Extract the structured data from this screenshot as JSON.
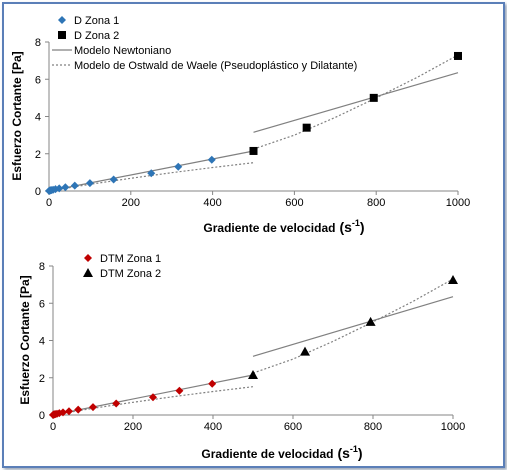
{
  "colors": {
    "zona1_top": "#2e75b6",
    "zona1_bottom": "#c00000",
    "zona2": "#000000",
    "model_line": "#808080",
    "frame_border": "#5b7fb8"
  },
  "chart_data": [
    {
      "type": "scatter",
      "title": "",
      "xlabel_main": "Gradiente de velocidad",
      "xlabel_unit_base": "(s",
      "xlabel_unit_exp": "-1",
      "xlabel_unit_close": ")",
      "ylabel": "Esfuerzo Cortante [Pa]",
      "xlim": [
        0,
        1000
      ],
      "ylim": [
        0,
        8
      ],
      "xticks": [
        0,
        200,
        400,
        600,
        800,
        1000
      ],
      "yticks": [
        0,
        2,
        4,
        6,
        8
      ],
      "legend_position": "top-left",
      "series": [
        {
          "name": "D   Zona 1",
          "marker": "diamond",
          "color": "#2e75b6",
          "x": [
            0,
            1.6,
            2.5,
            4,
            6.3,
            10,
            15.8,
            25,
            40,
            63,
            100,
            158,
            250,
            316,
            398
          ],
          "y": [
            0.01,
            0.02,
            0.03,
            0.04,
            0.05,
            0.07,
            0.1,
            0.14,
            0.2,
            0.29,
            0.42,
            0.62,
            0.95,
            1.3,
            1.68
          ]
        },
        {
          "name": "D   Zona 2",
          "marker": "square",
          "color": "#000000",
          "x": [
            500,
            630,
            794,
            1000
          ],
          "y": [
            2.15,
            3.4,
            5.0,
            7.25
          ]
        },
        {
          "name": "Modelo Newtoniano",
          "line": "solid",
          "color": "#808080",
          "segments": [
            {
              "x": [
                0,
                500
              ],
              "y": [
                0,
                2.15
              ]
            },
            {
              "x": [
                500,
                1000
              ],
              "y": [
                3.15,
                6.35
              ]
            }
          ]
        },
        {
          "name": "Modelo de Ostwald de Waele (Pseudoplástico y Dilatante)",
          "line": "dotted",
          "color": "#808080",
          "segments": [
            {
              "x": [
                0,
                100,
                200,
                300,
                400,
                500
              ],
              "y": [
                0,
                0.36,
                0.68,
                0.98,
                1.26,
                1.52
              ]
            },
            {
              "x": [
                500,
                600,
                700,
                800,
                900,
                1000
              ],
              "y": [
                2.25,
                3.0,
                3.95,
                5.0,
                6.1,
                7.3
              ]
            }
          ]
        }
      ]
    },
    {
      "type": "scatter",
      "title": "",
      "xlabel_main": "Gradiente de velocidad",
      "xlabel_unit_base": "(s",
      "xlabel_unit_exp": "-1",
      "xlabel_unit_close": ")",
      "ylabel": "Esfuerzo Cortante [Pa]",
      "xlim": [
        0,
        1000
      ],
      "ylim": [
        0,
        8
      ],
      "xticks": [
        0,
        200,
        400,
        600,
        800,
        1000
      ],
      "yticks": [
        0,
        2,
        4,
        6,
        8
      ],
      "legend_position": "top-left",
      "series": [
        {
          "name": "DTM Zona 1",
          "marker": "diamond",
          "color": "#c00000",
          "x": [
            0,
            1.6,
            2.5,
            4,
            6.3,
            10,
            15.8,
            25,
            40,
            63,
            100,
            158,
            250,
            316,
            398
          ],
          "y": [
            0.01,
            0.02,
            0.03,
            0.04,
            0.05,
            0.07,
            0.1,
            0.14,
            0.2,
            0.29,
            0.42,
            0.62,
            0.95,
            1.3,
            1.68
          ]
        },
        {
          "name": "DTM Zona 2",
          "marker": "triangle",
          "color": "#000000",
          "x": [
            500,
            630,
            794,
            1000
          ],
          "y": [
            2.15,
            3.4,
            5.0,
            7.25
          ]
        },
        {
          "name": "",
          "line": "solid",
          "color": "#808080",
          "segments": [
            {
              "x": [
                0,
                500
              ],
              "y": [
                0,
                2.15
              ]
            },
            {
              "x": [
                500,
                1000
              ],
              "y": [
                3.15,
                6.35
              ]
            }
          ]
        },
        {
          "name": "",
          "line": "dotted",
          "color": "#808080",
          "segments": [
            {
              "x": [
                0,
                100,
                200,
                300,
                400,
                500
              ],
              "y": [
                0,
                0.36,
                0.68,
                0.98,
                1.26,
                1.52
              ]
            },
            {
              "x": [
                500,
                600,
                700,
                800,
                900,
                1000
              ],
              "y": [
                2.25,
                3.0,
                3.95,
                5.0,
                6.1,
                7.3
              ]
            }
          ]
        }
      ]
    }
  ]
}
